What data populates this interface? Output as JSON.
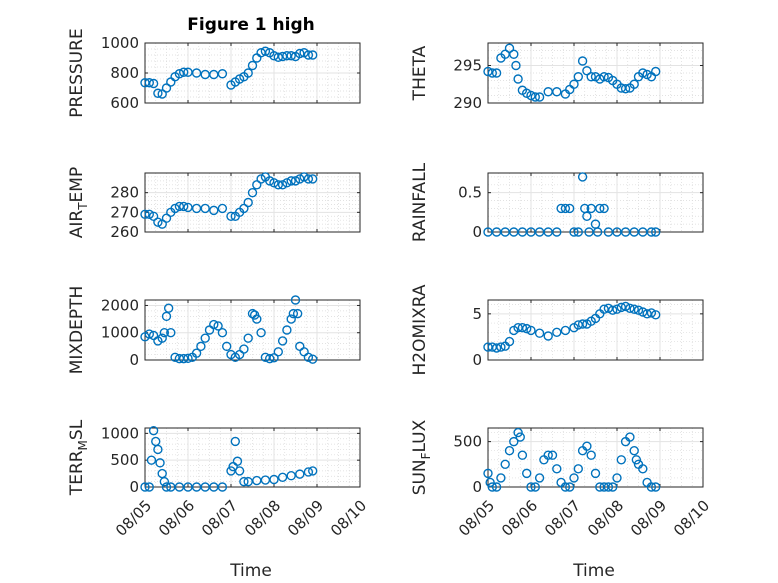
{
  "title": "Figure 1 high",
  "xlabel": "Time",
  "xticks": [
    "08/05",
    "08/06",
    "08/07",
    "08/08",
    "08/09",
    "08/10"
  ],
  "marker_color": "#0072BD",
  "chart_data": [
    {
      "type": "scatter",
      "ylabel": "PRESSURE",
      "ylabel_base": "PRESSURE",
      "ylabel_sub": "",
      "ylabel_rest": "",
      "ylim": [
        600,
        1000
      ],
      "yticks": [
        600,
        800,
        1000
      ],
      "x": [
        0.0,
        0.1,
        0.2,
        0.3,
        0.4,
        0.5,
        0.6,
        0.7,
        0.8,
        0.9,
        1.0,
        1.2,
        1.4,
        1.6,
        1.8,
        2.0,
        2.1,
        2.2,
        2.3,
        2.4,
        2.5,
        2.6,
        2.7,
        2.8,
        2.9,
        3.0,
        3.1,
        3.2,
        3.3,
        3.4,
        3.5,
        3.6,
        3.7,
        3.8,
        3.9
      ],
      "y": [
        735,
        735,
        730,
        665,
        660,
        700,
        740,
        775,
        795,
        805,
        805,
        800,
        790,
        790,
        795,
        720,
        740,
        760,
        775,
        800,
        850,
        900,
        935,
        945,
        935,
        915,
        905,
        910,
        915,
        915,
        910,
        930,
        935,
        920,
        920
      ]
    },
    {
      "type": "scatter",
      "ylabel": "THETA",
      "ylabel_base": "THETA",
      "ylabel_sub": "",
      "ylabel_rest": "",
      "ylim": [
        290,
        298
      ],
      "yticks": [
        290,
        295
      ],
      "x": [
        0.0,
        0.1,
        0.2,
        0.3,
        0.4,
        0.5,
        0.6,
        0.65,
        0.7,
        0.8,
        0.9,
        1.0,
        1.1,
        1.2,
        1.4,
        1.6,
        1.8,
        1.9,
        2.0,
        2.1,
        2.2,
        2.3,
        2.4,
        2.5,
        2.6,
        2.7,
        2.8,
        2.9,
        3.0,
        3.1,
        3.2,
        3.3,
        3.4,
        3.5,
        3.6,
        3.7,
        3.8,
        3.9
      ],
      "y": [
        294.2,
        294.0,
        294.0,
        296.0,
        296.5,
        297.3,
        296.5,
        295.0,
        293.2,
        291.7,
        291.3,
        291.0,
        290.8,
        290.8,
        291.5,
        291.5,
        291.2,
        291.8,
        292.5,
        293.5,
        295.6,
        294.3,
        293.5,
        293.5,
        293.2,
        293.5,
        293.4,
        293.0,
        292.5,
        292.0,
        291.9,
        292.0,
        292.5,
        293.5,
        294.0,
        293.8,
        293.5,
        294.2
      ]
    },
    {
      "type": "scatter",
      "ylabel": "AIR_TEMP",
      "ylabel_base": "AIR",
      "ylabel_sub": "T",
      "ylabel_rest": "EMP",
      "ylim": [
        260,
        290
      ],
      "yticks": [
        260,
        270,
        280
      ],
      "x": [
        0.0,
        0.1,
        0.2,
        0.3,
        0.4,
        0.5,
        0.6,
        0.7,
        0.8,
        0.9,
        1.0,
        1.2,
        1.4,
        1.6,
        1.8,
        2.0,
        2.1,
        2.2,
        2.3,
        2.4,
        2.5,
        2.6,
        2.7,
        2.8,
        2.9,
        3.0,
        3.1,
        3.2,
        3.3,
        3.4,
        3.5,
        3.6,
        3.7,
        3.8,
        3.9
      ],
      "y": [
        269,
        269,
        268,
        265,
        264,
        267,
        270,
        272,
        273,
        273,
        272.5,
        272,
        272,
        271,
        272,
        268,
        268,
        270,
        272,
        275,
        280,
        284,
        287,
        288,
        286,
        285,
        284,
        284,
        285,
        286,
        286,
        287,
        288,
        287,
        287
      ]
    },
    {
      "type": "scatter",
      "ylabel": "RAINFALL",
      "ylabel_base": "RAINFALL",
      "ylabel_sub": "",
      "ylabel_rest": "",
      "ylim": [
        0,
        0.75
      ],
      "yticks": [
        0,
        0.5
      ],
      "x": [
        0.0,
        0.2,
        0.4,
        0.6,
        0.8,
        1.0,
        1.2,
        1.4,
        1.6,
        1.7,
        1.8,
        1.9,
        2.0,
        2.1,
        2.2,
        2.25,
        2.3,
        2.35,
        2.4,
        2.5,
        2.55,
        2.6,
        2.7,
        2.8,
        3.0,
        3.2,
        3.4,
        3.6,
        3.8,
        3.9
      ],
      "y": [
        0,
        0,
        0,
        0,
        0,
        0,
        0,
        0,
        0,
        0.3,
        0.3,
        0.3,
        0,
        0,
        0.7,
        0.3,
        0.2,
        0,
        0.3,
        0.1,
        0,
        0.3,
        0.3,
        0,
        0,
        0,
        0,
        0,
        0,
        0
      ]
    },
    {
      "type": "scatter",
      "ylabel": "MIXDEPTH",
      "ylabel_base": "MIXDEPTH",
      "ylabel_sub": "",
      "ylabel_rest": "",
      "ylim": [
        0,
        2200
      ],
      "yticks": [
        0,
        1000,
        2000
      ],
      "x": [
        0.0,
        0.1,
        0.2,
        0.3,
        0.4,
        0.45,
        0.5,
        0.55,
        0.6,
        0.7,
        0.8,
        0.9,
        1.0,
        1.1,
        1.2,
        1.3,
        1.4,
        1.5,
        1.6,
        1.7,
        1.8,
        1.9,
        2.0,
        2.1,
        2.2,
        2.3,
        2.4,
        2.5,
        2.55,
        2.6,
        2.7,
        2.8,
        2.9,
        3.0,
        3.1,
        3.2,
        3.3,
        3.4,
        3.45,
        3.5,
        3.55,
        3.6,
        3.7,
        3.8,
        3.9
      ],
      "y": [
        850,
        950,
        900,
        700,
        800,
        1000,
        1600,
        1900,
        1000,
        100,
        50,
        50,
        60,
        100,
        250,
        500,
        800,
        1100,
        1300,
        1250,
        1000,
        500,
        200,
        100,
        200,
        400,
        800,
        1700,
        1650,
        1500,
        1000,
        100,
        50,
        80,
        300,
        700,
        1100,
        1500,
        1700,
        2200,
        1700,
        500,
        300,
        100,
        30
      ]
    },
    {
      "type": "scatter",
      "ylabel": "H2OMIXRA",
      "ylabel_base": "H2OMIXRA",
      "ylabel_sub": "",
      "ylabel_rest": "",
      "ylim": [
        0,
        6.5
      ],
      "yticks": [
        0,
        5
      ],
      "x": [
        0.0,
        0.1,
        0.2,
        0.3,
        0.4,
        0.5,
        0.6,
        0.7,
        0.8,
        0.9,
        1.0,
        1.2,
        1.4,
        1.6,
        1.8,
        2.0,
        2.1,
        2.2,
        2.3,
        2.4,
        2.5,
        2.6,
        2.7,
        2.8,
        2.9,
        3.0,
        3.1,
        3.2,
        3.3,
        3.4,
        3.5,
        3.6,
        3.7,
        3.8,
        3.9
      ],
      "y": [
        1.4,
        1.4,
        1.3,
        1.4,
        1.5,
        2.0,
        3.2,
        3.5,
        3.5,
        3.4,
        3.2,
        2.9,
        2.6,
        3.0,
        3.2,
        3.5,
        3.8,
        3.9,
        3.9,
        4.2,
        4.5,
        5.0,
        5.5,
        5.6,
        5.4,
        5.5,
        5.7,
        5.8,
        5.6,
        5.5,
        5.4,
        5.2,
        5.0,
        5.1,
        4.9
      ]
    },
    {
      "type": "scatter",
      "ylabel": "TERR_MSL",
      "ylabel_base": "TERR",
      "ylabel_sub": "M",
      "ylabel_rest": "SL",
      "ylim": [
        0,
        1100
      ],
      "yticks": [
        0,
        500,
        1000
      ],
      "x": [
        0.0,
        0.1,
        0.15,
        0.2,
        0.25,
        0.3,
        0.35,
        0.4,
        0.45,
        0.5,
        0.6,
        0.8,
        1.0,
        1.2,
        1.4,
        1.6,
        1.8,
        2.0,
        2.05,
        2.1,
        2.15,
        2.2,
        2.3,
        2.4,
        2.6,
        2.8,
        3.0,
        3.2,
        3.4,
        3.6,
        3.8,
        3.9
      ],
      "y": [
        0,
        0,
        500,
        1050,
        850,
        700,
        450,
        250,
        100,
        0,
        0,
        0,
        0,
        0,
        0,
        0,
        0,
        300,
        380,
        850,
        480,
        300,
        100,
        100,
        120,
        130,
        140,
        180,
        210,
        240,
        280,
        300
      ]
    },
    {
      "type": "scatter",
      "ylabel": "SUN_FLUX",
      "ylabel_base": "SUN",
      "ylabel_sub": "F",
      "ylabel_rest": "LUX",
      "ylim": [
        0,
        650
      ],
      "yticks": [
        0,
        500
      ],
      "x": [
        0.0,
        0.05,
        0.1,
        0.2,
        0.3,
        0.4,
        0.5,
        0.6,
        0.7,
        0.75,
        0.8,
        0.9,
        1.0,
        1.1,
        1.2,
        1.3,
        1.4,
        1.5,
        1.6,
        1.7,
        1.8,
        1.9,
        2.0,
        2.1,
        2.2,
        2.3,
        2.4,
        2.5,
        2.6,
        2.7,
        2.8,
        2.9,
        3.0,
        3.1,
        3.2,
        3.3,
        3.4,
        3.45,
        3.5,
        3.6,
        3.7,
        3.8,
        3.9
      ],
      "y": [
        150,
        50,
        0,
        0,
        100,
        250,
        400,
        500,
        600,
        550,
        350,
        150,
        0,
        0,
        100,
        300,
        350,
        350,
        200,
        50,
        0,
        0,
        100,
        200,
        400,
        450,
        350,
        150,
        0,
        0,
        0,
        0,
        100,
        300,
        500,
        550,
        400,
        300,
        250,
        200,
        50,
        0,
        0
      ]
    }
  ]
}
